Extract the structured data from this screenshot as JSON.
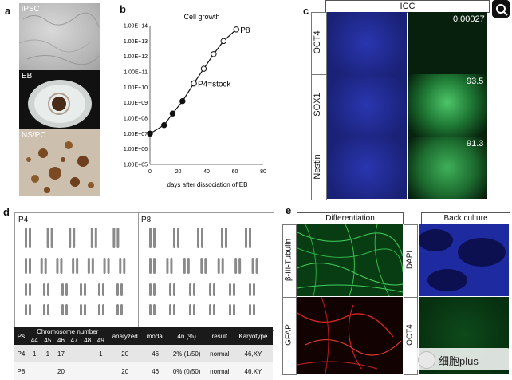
{
  "panels": {
    "a": {
      "letter": "a",
      "labels": [
        "iPSC",
        "EB",
        "NS/PC"
      ]
    },
    "b": {
      "letter": "b"
    },
    "c": {
      "letter": "c",
      "header": "ICC",
      "rows": [
        {
          "marker": "OCT4",
          "value": "0.00027"
        },
        {
          "marker": "SOX1",
          "value": "93.5"
        },
        {
          "marker": "Nestin",
          "value": "91.3"
        }
      ]
    },
    "d": {
      "letter": "d",
      "karyo_left": "P4",
      "karyo_right": "P8"
    },
    "e": {
      "letter": "e",
      "left_header": "Differentiation",
      "right_header": "Back culture",
      "left_markers": [
        "β-III-Tubulin",
        "GFAP"
      ],
      "right_markers": [
        "DAPI",
        "OCT4"
      ]
    }
  },
  "chart_data": {
    "type": "line",
    "title": "Cell growth",
    "xlabel": "days after dissociation of EB",
    "ylabel": "",
    "xlim": [
      0,
      80
    ],
    "xticks": [
      "0",
      "20",
      "40",
      "60",
      "80"
    ],
    "ylim_log10": [
      5,
      14
    ],
    "yticks": [
      "1.00E+05",
      "1.00E+06",
      "1.00E+07",
      "1.00E+08",
      "1.00E+09",
      "1.00E+10",
      "1.00E+11",
      "1.00E+12",
      "1.00E+13",
      "1.00E+14"
    ],
    "series": [
      {
        "fill": "black",
        "points": [
          [
            0,
            7.0
          ],
          [
            10,
            7.55
          ],
          [
            16,
            8.3
          ],
          [
            23,
            9.1
          ],
          [
            31,
            10.25
          ]
        ]
      },
      {
        "fill": "open",
        "points": [
          [
            31,
            10.25
          ],
          [
            38,
            11.2
          ],
          [
            45,
            12.15
          ],
          [
            52,
            13.0
          ],
          [
            61,
            13.75
          ]
        ]
      }
    ],
    "annotations": [
      {
        "text": "P4=stock",
        "x": 31,
        "y": 10.25
      },
      {
        "text": "P8",
        "x": 61,
        "y": 13.75
      }
    ]
  },
  "table": {
    "headers_row1": [
      "Ps",
      "Chromosome number",
      "analyzed",
      "modal",
      "4n (%)",
      "result",
      "Karyotype"
    ],
    "chrom_numbers": [
      "44",
      "45",
      "46",
      "47",
      "48",
      "49"
    ],
    "rows": [
      {
        "ps": "P4",
        "chrom": [
          "1",
          "1",
          "17",
          "",
          "",
          "1"
        ],
        "analyzed": "20",
        "modal": "46",
        "fourN": "2% (1/50)",
        "result": "normal",
        "karyotype": "46,XY"
      },
      {
        "ps": "P8",
        "chrom": [
          "",
          "",
          "20",
          "",
          "",
          ""
        ],
        "analyzed": "20",
        "modal": "46",
        "fourN": "0% (0/50)",
        "result": "normal",
        "karyotype": "46,XY"
      }
    ]
  },
  "watermark": "细胞plus",
  "colors": {
    "dapi": "#1f2a9c",
    "green": "#2fa84a",
    "red": "#d7261e",
    "dark": "#0a0a0a"
  }
}
